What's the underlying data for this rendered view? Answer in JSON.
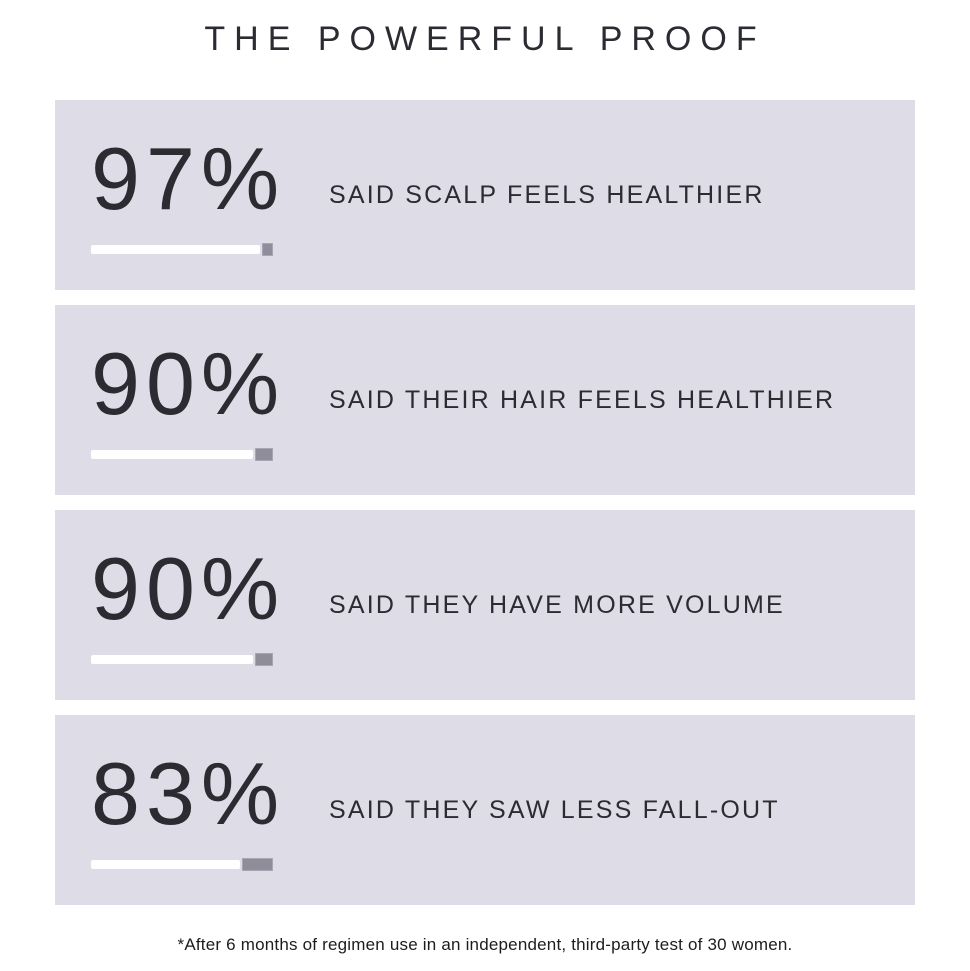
{
  "page": {
    "title": "THE POWERFUL PROOF",
    "footnote": "*After 6 months of regimen use in an independent, third-party test of 30 women."
  },
  "colors": {
    "page_bg": "#ffffff",
    "card_bg": "#dedce6",
    "ink": "#2b2b31",
    "bar_white": "#ffffff",
    "bar_gray": "#8e8d99"
  },
  "stats": [
    {
      "percent": "97%",
      "value": 97,
      "label": "SAID SCALP FEELS HEALTHIER"
    },
    {
      "percent": "90%",
      "value": 90,
      "label": "SAID THEIR HAIR FEELS HEALTHIER"
    },
    {
      "percent": "90%",
      "value": 90,
      "label": "SAID THEY HAVE MORE VOLUME"
    },
    {
      "percent": "83%",
      "value": 83,
      "label": "SAID THEY SAW LESS FALL-OUT"
    }
  ],
  "chart_data": {
    "type": "bar",
    "title": "THE POWERFUL PROOF",
    "categories": [
      "SAID SCALP FEELS HEALTHIER",
      "SAID THEIR HAIR FEELS HEALTHIER",
      "SAID THEY HAVE MORE VOLUME",
      "SAID THEY SAW LESS FALL-OUT"
    ],
    "values": [
      97,
      90,
      90,
      83
    ],
    "unit": "%",
    "xlim": [
      0,
      100
    ],
    "orientation": "horizontal",
    "data_labels": [
      "97%",
      "90%",
      "90%",
      "83%"
    ],
    "annotation": "*After 6 months of regimen use in an independent, third-party test of 30 women.",
    "legend": false,
    "grid": false
  }
}
